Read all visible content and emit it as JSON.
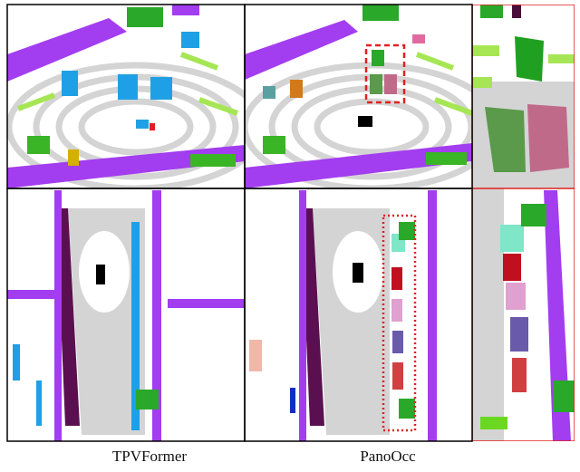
{
  "captions": {
    "left": "TPVFormer",
    "right": "PanoOcc"
  }
}
